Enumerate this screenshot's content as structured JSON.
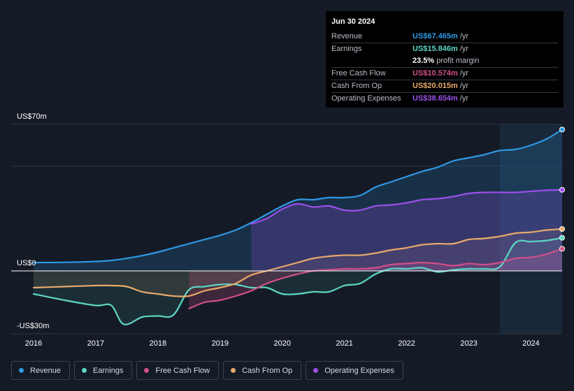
{
  "tooltip": {
    "date": "Jun 30 2024",
    "rows": [
      {
        "label": "Revenue",
        "value": "US$67.465m",
        "unit": "/yr",
        "color": "#2f98e4"
      },
      {
        "label": "Earnings",
        "value": "US$15.846m",
        "unit": "/yr",
        "color": "#5dd6c4"
      },
      {
        "label": "",
        "value": "23.5%",
        "unit": "profit margin",
        "color": "#ffffff"
      },
      {
        "label": "Free Cash Flow",
        "value": "US$10.574m",
        "unit": "/yr",
        "color": "#d14f8a"
      },
      {
        "label": "Cash From Op",
        "value": "US$20.015m",
        "unit": "/yr",
        "color": "#e8a96b"
      },
      {
        "label": "Operating Expenses",
        "value": "US$38.654m",
        "unit": "/yr",
        "color": "#9b4fe8"
      }
    ]
  },
  "legend": [
    {
      "label": "Revenue",
      "color": "#2f98e4"
    },
    {
      "label": "Earnings",
      "color": "#5dd6c4"
    },
    {
      "label": "Free Cash Flow",
      "color": "#d14f8a"
    },
    {
      "label": "Cash From Op",
      "color": "#e8a96b"
    },
    {
      "label": "Operating Expenses",
      "color": "#9b4fe8"
    }
  ],
  "chart_data": {
    "type": "area",
    "title": "",
    "xlabel": "",
    "ylabel": "",
    "xlim": [
      2016,
      2024.5
    ],
    "ylim": [
      -30,
      70
    ],
    "y_tick_labels": [
      "US$70m",
      "US$0",
      "-US$30m"
    ],
    "y_ticks": [
      70,
      0,
      -30
    ],
    "x_tick_labels": [
      "2016",
      "2017",
      "2018",
      "2019",
      "2020",
      "2021",
      "2022",
      "2023",
      "2024"
    ],
    "x_ticks": [
      2016,
      2017,
      2018,
      2019,
      2020,
      2021,
      2022,
      2023,
      2024
    ],
    "forecast_start": 2023.5,
    "series": [
      {
        "name": "Revenue",
        "color": "#2f98e4",
        "x": [
          2016,
          2016.5,
          2017,
          2017.25,
          2017.5,
          2017.75,
          2018,
          2018.25,
          2018.5,
          2018.75,
          2019,
          2019.25,
          2019.5,
          2019.75,
          2020,
          2020.25,
          2020.5,
          2020.75,
          2021,
          2021.25,
          2021.5,
          2021.75,
          2022,
          2022.25,
          2022.5,
          2022.75,
          2023,
          2023.25,
          2023.5,
          2023.75,
          2024,
          2024.25,
          2024.5
        ],
        "values": [
          4,
          4.1,
          4.5,
          5,
          6,
          7.3,
          9,
          11,
          13,
          15,
          17,
          19.5,
          23,
          27,
          31,
          34,
          34,
          35,
          35,
          36,
          40,
          42.5,
          45,
          47.5,
          49.5,
          52.5,
          54,
          55.5,
          57.5,
          58,
          60,
          63,
          67.5
        ]
      },
      {
        "name": "Earnings",
        "color": "#5dd6c4",
        "x": [
          2016,
          2016.5,
          2017,
          2017.25,
          2017.45,
          2017.75,
          2018,
          2018.25,
          2018.5,
          2018.75,
          2019,
          2019.25,
          2019.5,
          2019.75,
          2020,
          2020.25,
          2020.5,
          2020.75,
          2021,
          2021.25,
          2021.5,
          2021.75,
          2022,
          2022.25,
          2022.5,
          2022.75,
          2023,
          2023.25,
          2023.5,
          2023.75,
          2024,
          2024.25,
          2024.5
        ],
        "values": [
          -11,
          -14,
          -16.5,
          -16.5,
          -25.5,
          -22,
          -21.5,
          -21,
          -9,
          -7.5,
          -6.5,
          -6.5,
          -8,
          -8,
          -11,
          -11,
          -10,
          -10,
          -7,
          -6,
          -1.5,
          1,
          1,
          1.5,
          -0.5,
          0.5,
          1,
          1,
          2,
          13.5,
          14,
          14.5,
          15.8
        ]
      },
      {
        "name": "Free Cash Flow",
        "color": "#d14f8a",
        "x": [
          2018.5,
          2018.75,
          2019,
          2019.25,
          2019.5,
          2019.75,
          2020,
          2020.25,
          2020.5,
          2020.75,
          2021,
          2021.25,
          2021.5,
          2021.75,
          2022,
          2022.25,
          2022.5,
          2022.75,
          2023,
          2023.25,
          2023.5,
          2023.75,
          2024,
          2024.25,
          2024.5
        ],
        "values": [
          -18,
          -15,
          -14,
          -12,
          -9.5,
          -6,
          -3.5,
          -1.5,
          0,
          0.5,
          1,
          1,
          1.5,
          3,
          3.5,
          4,
          3.5,
          2.5,
          3.5,
          3,
          4,
          6,
          6.5,
          8,
          10.6
        ]
      },
      {
        "name": "Cash From Op",
        "color": "#e8a96b",
        "x": [
          2016,
          2016.5,
          2017,
          2017.25,
          2017.5,
          2017.75,
          2018,
          2018.25,
          2018.5,
          2018.75,
          2019,
          2019.25,
          2019.5,
          2019.75,
          2020,
          2020.25,
          2020.5,
          2020.75,
          2021,
          2021.25,
          2021.5,
          2021.75,
          2022,
          2022.25,
          2022.5,
          2022.75,
          2023,
          2023.25,
          2023.5,
          2023.75,
          2024,
          2024.25,
          2024.5
        ],
        "values": [
          -8,
          -7.5,
          -7,
          -7,
          -7.5,
          -10,
          -11,
          -12,
          -12,
          -9.5,
          -8,
          -6,
          -2,
          0,
          2,
          4,
          6,
          7,
          7.5,
          7.5,
          8.5,
          10,
          11,
          12.5,
          13,
          13,
          15,
          15.5,
          16.5,
          18,
          18.5,
          19.5,
          20
        ]
      },
      {
        "name": "Operating Expenses",
        "color": "#9b4fe8",
        "x": [
          2019.5,
          2019.75,
          2020,
          2020.25,
          2020.5,
          2020.75,
          2021,
          2021.25,
          2021.5,
          2021.75,
          2022,
          2022.25,
          2022.5,
          2022.75,
          2023,
          2023.25,
          2023.5,
          2023.75,
          2024,
          2024.25,
          2024.5
        ],
        "values": [
          22.5,
          25,
          29.5,
          32,
          30.5,
          31,
          29,
          29,
          31,
          31.5,
          32.5,
          34,
          34.5,
          35.5,
          37,
          37.5,
          37.5,
          37.5,
          38,
          38.5,
          38.7
        ]
      }
    ]
  }
}
